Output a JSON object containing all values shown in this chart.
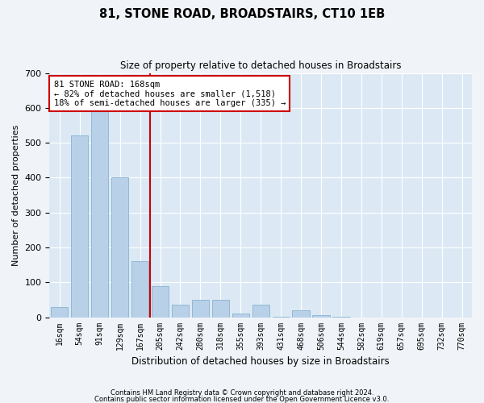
{
  "title1": "81, STONE ROAD, BROADSTAIRS, CT10 1EB",
  "title2": "Size of property relative to detached houses in Broadstairs",
  "xlabel": "Distribution of detached houses by size in Broadstairs",
  "ylabel": "Number of detached properties",
  "categories": [
    "16sqm",
    "54sqm",
    "91sqm",
    "129sqm",
    "167sqm",
    "205sqm",
    "242sqm",
    "280sqm",
    "318sqm",
    "355sqm",
    "393sqm",
    "431sqm",
    "468sqm",
    "506sqm",
    "544sqm",
    "582sqm",
    "619sqm",
    "657sqm",
    "695sqm",
    "732sqm",
    "770sqm"
  ],
  "values": [
    30,
    520,
    590,
    400,
    160,
    90,
    35,
    50,
    50,
    10,
    35,
    2,
    20,
    5,
    2,
    0,
    0,
    0,
    0,
    0,
    0
  ],
  "bar_color": "#b8d0e8",
  "bar_edge_color": "#7aaac8",
  "vline_x": 4.5,
  "vline_color": "#cc0000",
  "annotation_title": "81 STONE ROAD: 168sqm",
  "annotation_line1": "← 82% of detached houses are smaller (1,518)",
  "annotation_line2": "18% of semi-detached houses are larger (335) →",
  "annotation_box_color": "#ffffff",
  "annotation_box_edge": "#cc0000",
  "footer1": "Contains HM Land Registry data © Crown copyright and database right 2024.",
  "footer2": "Contains public sector information licensed under the Open Government Licence v3.0.",
  "ylim": [
    0,
    700
  ],
  "yticks": [
    0,
    100,
    200,
    300,
    400,
    500,
    600,
    700
  ],
  "fig_bg": "#f0f4f8",
  "plot_bg_color": "#dce9f5",
  "grid_color": "#ffffff"
}
